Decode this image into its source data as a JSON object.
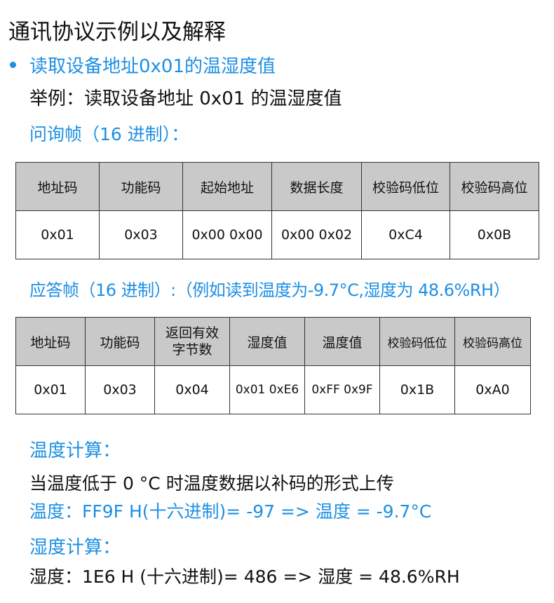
{
  "title": "通讯协议示例以及解释",
  "bullet": "读取设备地址0x01的温湿度值",
  "example": "举例：读取设备地址 0x01 的温湿度值",
  "query_label": "问询帧（16 进制）：",
  "query_table": {
    "headers": [
      "地址码",
      "功能码",
      "起始地址",
      "数据长度",
      "校验码低位",
      "校验码高位"
    ],
    "values": [
      "0x01",
      "0x03",
      "0x00 0x00",
      "0x00 0x02",
      "0xC4",
      "0x0B"
    ]
  },
  "response_label": "应答帧（16 进制）:（例如读到温度为-9.7°C,湿度为 48.6%RH）",
  "response_table": {
    "headers": [
      "地址码",
      "功能码",
      "返回有效字节数",
      "湿度值",
      "温度值",
      "校验码低位",
      "校验码高位"
    ],
    "values": [
      "0x01",
      "0x03",
      "0x04",
      "0x01 0xE6",
      "0xFF 0x9F",
      "0x1B",
      "0xA0"
    ]
  },
  "temp_calc_label": "温度计算：",
  "temp_note": "当温度低于 0 °C 时温度数据以补码的形式上传",
  "temp_formula": "温度：FF9F H(十六进制)= -97 => 温度 = -9.7°C",
  "hum_calc_label": "湿度计算：",
  "hum_formula": "湿度：1E6 H (十六进制)= 486 => 湿度 = 48.6%RH",
  "colors": {
    "accent": "#1e8fe3",
    "header_bg": "#c9c9c9"
  }
}
